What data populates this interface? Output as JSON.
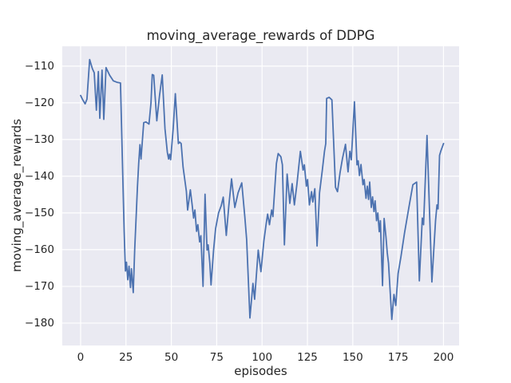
{
  "chart_data": {
    "type": "line",
    "title": "moving_average_rewards of DDPG",
    "xlabel": "episodes",
    "ylabel": "moving_average_rewards",
    "legend": null,
    "grid": true,
    "line_color": "#4c72b0",
    "axes_background": "#eaeaf2",
    "grid_color": "#ffffff",
    "figure_background": "#ffffff",
    "text_color": "#262626",
    "xlim": [
      -10.1,
      208.6
    ],
    "ylim": [
      -186.1,
      -104.6
    ],
    "xticks": [
      0,
      25,
      50,
      75,
      100,
      125,
      150,
      175,
      200
    ],
    "xtick_labels": [
      "0",
      "25",
      "50",
      "75",
      "100",
      "125",
      "150",
      "175",
      "200"
    ],
    "yticks": [
      -110,
      -120,
      -130,
      -140,
      -150,
      -160,
      -170,
      -180
    ],
    "ytick_labels": [
      "−110",
      "−120",
      "−130",
      "−140",
      "−150",
      "−160",
      "−170",
      "−180"
    ],
    "x": [
      0,
      1,
      2.5,
      3.5,
      5,
      6.5,
      7.5,
      8.7,
      9.8,
      10.6,
      11.8,
      12.8,
      14,
      16,
      18,
      20,
      22,
      23,
      24,
      24.7,
      25.3,
      26,
      26.7,
      27.5,
      28,
      29,
      29.8,
      30.5,
      31.3,
      32,
      32.7,
      33.3,
      34.8,
      36,
      37.7,
      38.8,
      39.5,
      40.3,
      42,
      43.5,
      45,
      46.5,
      47.8,
      48.5,
      49,
      49.6,
      51,
      52.2,
      53.9,
      54.6,
      55.4,
      56.5,
      58.3,
      59,
      60.5,
      61.4,
      62.3,
      63,
      63.9,
      64.6,
      65.6,
      66.3,
      67.5,
      68.6,
      69.7,
      70.3,
      71.2,
      71.9,
      73.3,
      74.4,
      76,
      77.5,
      78.6,
      80.3,
      81.7,
      83.2,
      85,
      86.8,
      88.8,
      90.5,
      91.5,
      93.3,
      95,
      95.9,
      97.9,
      99.4,
      101,
      102.3,
      103.1,
      104.1,
      105.3,
      106,
      107.9,
      108.9,
      110.4,
      111.2,
      112.3,
      113.8,
      115.3,
      116.6,
      117.8,
      119.2,
      121.1,
      122.6,
      123.3,
      124.4,
      125.1,
      126.1,
      127.3,
      128,
      129.1,
      130.3,
      131.7,
      133.2,
      134.4,
      135.1,
      135.6,
      137,
      138.5,
      140.5,
      141.6,
      143,
      144.3,
      146,
      147.4,
      148.4,
      149.2,
      150.9,
      152.3,
      153,
      153.7,
      154.5,
      155.6,
      156.3,
      157.3,
      158,
      158.7,
      159.3,
      160.2,
      160.9,
      161.7,
      162.3,
      163.1,
      163.8,
      164.6,
      165.2,
      166.4,
      167.3,
      168.3,
      169,
      169.7,
      171.5,
      172.7,
      173.7,
      175,
      176.5,
      178.5,
      180.9,
      183.1,
      185.2,
      186.7,
      188.3,
      189,
      190.9,
      193.6,
      195.6,
      196.4,
      197,
      197.8,
      198.5,
      200
    ],
    "y": [
      -118,
      -119,
      -120.3,
      -119,
      -108.2,
      -110.7,
      -111.8,
      -122,
      -111.5,
      -124.2,
      -111.1,
      -124.5,
      -110.4,
      -112.5,
      -114,
      -114.4,
      -114.6,
      -135,
      -155,
      -165.8,
      -163.4,
      -168.2,
      -164.5,
      -170.3,
      -165.2,
      -171.7,
      -160,
      -152.1,
      -143.1,
      -136.5,
      -131.4,
      -135.3,
      -125.4,
      -125.2,
      -125.8,
      -120,
      -112.3,
      -112.5,
      -124.9,
      -118,
      -112.4,
      -127,
      -133.5,
      -135.3,
      -134,
      -135.5,
      -127,
      -117.5,
      -131.1,
      -130.7,
      -131.1,
      -137.5,
      -144.1,
      -149.2,
      -143.7,
      -147.5,
      -151.4,
      -149.2,
      -155,
      -153.2,
      -157.9,
      -156.2,
      -170,
      -144.9,
      -160.1,
      -158.7,
      -163.7,
      -169.6,
      -160.1,
      -154.3,
      -150,
      -148,
      -145.7,
      -156.1,
      -148,
      -140.7,
      -148.5,
      -144.5,
      -141.8,
      -151,
      -157.2,
      -178.6,
      -169.2,
      -173.5,
      -160.1,
      -166,
      -157.6,
      -152.9,
      -150.3,
      -153.2,
      -149.2,
      -151,
      -136.5,
      -133.8,
      -134.7,
      -136.9,
      -158.7,
      -139.4,
      -147.4,
      -142,
      -147.8,
      -142.3,
      -133.2,
      -138.3,
      -136.9,
      -142.7,
      -140.9,
      -147.8,
      -144.2,
      -147,
      -143.4,
      -159,
      -144.5,
      -138.3,
      -133.2,
      -131.1,
      -118.8,
      -118.5,
      -119.2,
      -143,
      -144.2,
      -139,
      -135.2,
      -131.3,
      -138.8,
      -133.2,
      -135.5,
      -119.7,
      -136.9,
      -135.8,
      -139.8,
      -136.8,
      -142.3,
      -140.9,
      -146,
      -142.7,
      -146.3,
      -141.6,
      -148.5,
      -145.6,
      -149.6,
      -146.7,
      -152.1,
      -150,
      -155.1,
      -152.1,
      -169.8,
      -151.5,
      -156.5,
      -160.8,
      -163.7,
      -179,
      -172.2,
      -175.2,
      -166.5,
      -162,
      -155.5,
      -148.5,
      -142.3,
      -141.6,
      -168.5,
      -151.4,
      -153.2,
      -128.9,
      -168.8,
      -152.1,
      -147.8,
      -148.9,
      -134.3,
      -133.2,
      -131.1
    ]
  }
}
